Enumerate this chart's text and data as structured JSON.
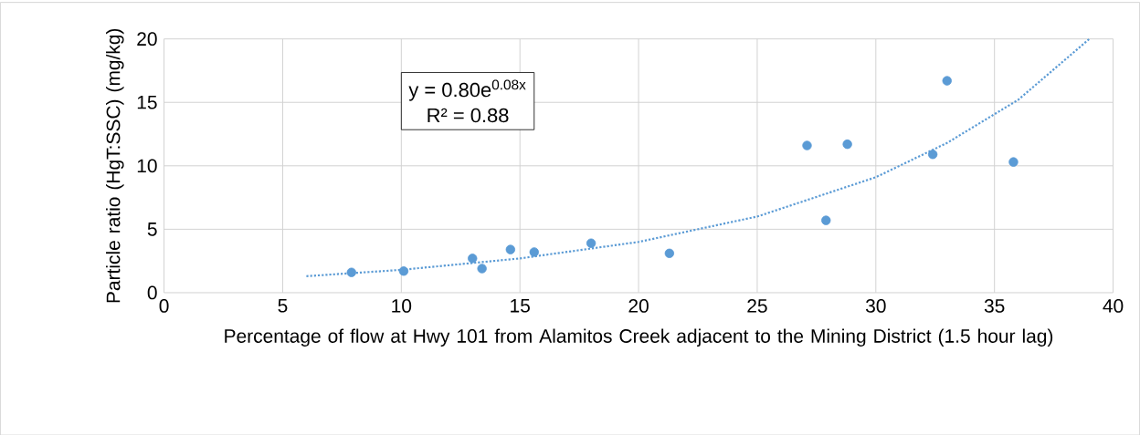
{
  "chart_data": {
    "type": "scatter",
    "xlabel": "Percentage of flow at Hwy 101 from Alamitos Creek adjacent to the Mining District (1.5 hour lag)",
    "ylabel": "Particle ratio (HgT:SSC) (mg/kg)",
    "annotations": [
      "y = 0.80e$^{0.08x}$",
      "R² = 0.88"
    ],
    "series": [
      {
        "color": "#5b9bd5",
        "marker": "circle",
        "x": [
          7.9,
          10.1,
          13.0,
          13.4,
          14.6,
          15.6,
          18.0,
          21.3,
          27.1,
          27.9,
          28.8,
          32.4,
          33.0,
          35.8
        ],
        "values": [
          1.6,
          1.7,
          2.7,
          1.9,
          3.4,
          3.2,
          3.9,
          3.1,
          11.6,
          5.7,
          11.7,
          10.9,
          16.7,
          10.3
        ]
      },
      {
        "type": "line",
        "color": "#5b9bd5",
        "marker": "none",
        "line_style": "dotted",
        "x": [
          6,
          10,
          15,
          20,
          25,
          30,
          33,
          36,
          39
        ],
        "values": [
          1.3,
          1.8,
          2.7,
          4.0,
          6.0,
          9.1,
          11.8,
          15.2,
          20
        ]
      }
    ],
    "xlim": [
      0,
      40
    ],
    "xticks": [
      0,
      5,
      10,
      15,
      20,
      25,
      30,
      35,
      40
    ],
    "ylim": [
      0,
      20
    ],
    "yticks": [
      0,
      5,
      10,
      15,
      20
    ],
    "grid": true
  }
}
